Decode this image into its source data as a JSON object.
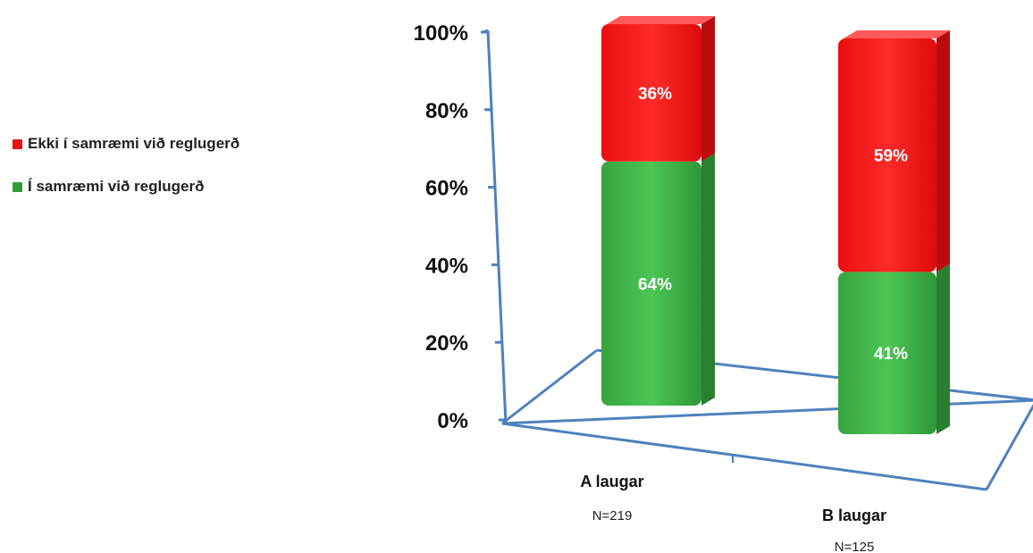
{
  "chart_data": {
    "type": "bar",
    "stacked": true,
    "three_d": true,
    "categories": [
      "A laugar",
      "B laugar"
    ],
    "category_counts": [
      "N=219",
      "N=125"
    ],
    "series": [
      {
        "name": "Í samræmi við reglugerð",
        "values": [
          64,
          41
        ],
        "labels": [
          "64%",
          "41%"
        ],
        "color": "#3cb043"
      },
      {
        "name": "Ekki í samræmi við reglugerð",
        "values": [
          36,
          59
        ],
        "labels": [
          "36%",
          "59%"
        ],
        "color": "#ff1a1a"
      }
    ],
    "y_ticks": [
      "0%",
      "20%",
      "40%",
      "60%",
      "80%",
      "100%"
    ],
    "ylim": [
      0,
      100
    ],
    "legend_position": "left",
    "axis_color": "#4f81bd"
  }
}
